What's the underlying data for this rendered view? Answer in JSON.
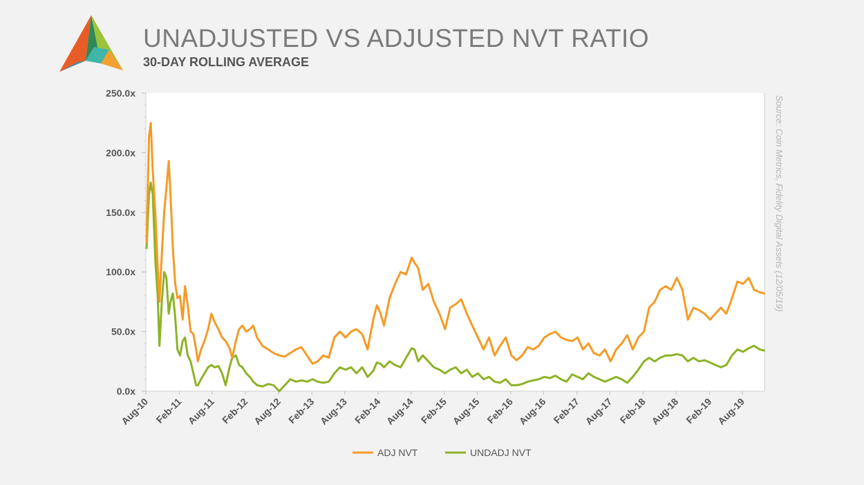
{
  "header": {
    "title": "UNADJUSTED VS ADJUSTED NVT RATIO",
    "subtitle": "30-DAY ROLLING AVERAGE",
    "source": "Source: Coin Metrics, Fidelity Digital Assets (12/05/19)"
  },
  "colors": {
    "background": "#f2f2f2",
    "plot_background": "#ffffff",
    "adj": "#f59a25",
    "undadj": "#8cb225",
    "axis_text": "#555555"
  },
  "chart_data": {
    "type": "line",
    "title": "UNADJUSTED VS ADJUSTED NVT RATIO",
    "subtitle": "30-DAY ROLLING AVERAGE",
    "xlabel": "",
    "ylabel": "",
    "x_range": [
      "2010-08",
      "2019-12"
    ],
    "ylim": [
      0,
      250
    ],
    "y_ticks": [
      0,
      50,
      100,
      150,
      200,
      250
    ],
    "y_tick_labels": [
      "0.0x",
      "50.0x",
      "100.0x",
      "150.0x",
      "200.0x",
      "250.0x"
    ],
    "x_ticks": [
      "2010-08",
      "2011-02",
      "2011-08",
      "2012-02",
      "2012-08",
      "2013-02",
      "2013-08",
      "2014-02",
      "2014-08",
      "2015-02",
      "2015-08",
      "2016-02",
      "2016-08",
      "2017-02",
      "2017-08",
      "2018-02",
      "2018-08",
      "2019-02",
      "2019-08"
    ],
    "x_tick_labels": [
      "Aug-10",
      "Feb-11",
      "Aug-11",
      "Feb-12",
      "Aug-12",
      "Feb-13",
      "Aug-13",
      "Feb-14",
      "Aug-14",
      "Feb-15",
      "Aug-15",
      "Feb-16",
      "Aug-16",
      "Feb-17",
      "Aug-17",
      "Feb-18",
      "Aug-18",
      "Feb-19",
      "Aug-19"
    ],
    "grid": false,
    "legend_position": "bottom",
    "series": [
      {
        "name": "ADJ NVT",
        "color": "#f59a25",
        "points": [
          [
            "2010-08-05",
            125
          ],
          [
            "2010-08-18",
            213
          ],
          [
            "2010-08-28",
            225
          ],
          [
            "2010-09-08",
            185
          ],
          [
            "2010-09-22",
            150
          ],
          [
            "2010-10-05",
            105
          ],
          [
            "2010-10-15",
            75
          ],
          [
            "2010-10-28",
            115
          ],
          [
            "2010-11-10",
            150
          ],
          [
            "2010-11-22",
            170
          ],
          [
            "2010-12-05",
            193
          ],
          [
            "2010-12-15",
            165
          ],
          [
            "2010-12-28",
            120
          ],
          [
            "2011-01-10",
            90
          ],
          [
            "2011-01-22",
            78
          ],
          [
            "2011-02-05",
            80
          ],
          [
            "2011-02-20",
            60
          ],
          [
            "2011-03-05",
            88
          ],
          [
            "2011-03-20",
            72
          ],
          [
            "2011-04-05",
            50
          ],
          [
            "2011-04-20",
            48
          ],
          [
            "2011-05-05",
            35
          ],
          [
            "2011-05-15",
            25
          ],
          [
            "2011-06-01",
            35
          ],
          [
            "2011-06-20",
            42
          ],
          [
            "2011-07-10",
            52
          ],
          [
            "2011-07-28",
            65
          ],
          [
            "2011-08-15",
            58
          ],
          [
            "2011-09-05",
            52
          ],
          [
            "2011-09-25",
            45
          ],
          [
            "2011-10-15",
            42
          ],
          [
            "2011-11-05",
            36
          ],
          [
            "2011-11-20",
            28
          ],
          [
            "2011-12-10",
            42
          ],
          [
            "2011-12-28",
            52
          ],
          [
            "2012-01-15",
            55
          ],
          [
            "2012-02-05",
            50
          ],
          [
            "2012-02-25",
            52
          ],
          [
            "2012-03-15",
            55
          ],
          [
            "2012-04-05",
            45
          ],
          [
            "2012-05-05",
            38
          ],
          [
            "2012-06-05",
            35
          ],
          [
            "2012-07-05",
            32
          ],
          [
            "2012-08-05",
            30
          ],
          [
            "2012-09-05",
            29
          ],
          [
            "2012-10-05",
            32
          ],
          [
            "2012-11-05",
            35
          ],
          [
            "2012-12-05",
            37
          ],
          [
            "2013-01-05",
            30
          ],
          [
            "2013-02-05",
            23
          ],
          [
            "2013-03-05",
            25
          ],
          [
            "2013-04-05",
            30
          ],
          [
            "2013-05-05",
            28
          ],
          [
            "2013-06-05",
            45
          ],
          [
            "2013-07-05",
            50
          ],
          [
            "2013-08-05",
            45
          ],
          [
            "2013-09-05",
            50
          ],
          [
            "2013-10-05",
            52
          ],
          [
            "2013-11-05",
            48
          ],
          [
            "2013-12-05",
            35
          ],
          [
            "2014-01-05",
            60
          ],
          [
            "2014-01-25",
            72
          ],
          [
            "2014-02-15",
            65
          ],
          [
            "2014-03-05",
            55
          ],
          [
            "2014-04-05",
            78
          ],
          [
            "2014-05-05",
            90
          ],
          [
            "2014-06-05",
            100
          ],
          [
            "2014-07-05",
            98
          ],
          [
            "2014-08-05",
            112
          ],
          [
            "2014-08-20",
            108
          ],
          [
            "2014-09-10",
            103
          ],
          [
            "2014-10-05",
            85
          ],
          [
            "2014-11-05",
            90
          ],
          [
            "2014-12-05",
            75
          ],
          [
            "2015-01-05",
            65
          ],
          [
            "2015-02-05",
            52
          ],
          [
            "2015-03-05",
            70
          ],
          [
            "2015-04-05",
            73
          ],
          [
            "2015-05-05",
            77
          ],
          [
            "2015-06-05",
            65
          ],
          [
            "2015-07-05",
            55
          ],
          [
            "2015-08-05",
            45
          ],
          [
            "2015-09-05",
            35
          ],
          [
            "2015-10-05",
            45
          ],
          [
            "2015-11-05",
            30
          ],
          [
            "2015-12-05",
            38
          ],
          [
            "2016-01-05",
            45
          ],
          [
            "2016-02-05",
            30
          ],
          [
            "2016-03-05",
            26
          ],
          [
            "2016-04-05",
            30
          ],
          [
            "2016-05-05",
            37
          ],
          [
            "2016-06-05",
            35
          ],
          [
            "2016-07-05",
            38
          ],
          [
            "2016-08-05",
            45
          ],
          [
            "2016-09-05",
            48
          ],
          [
            "2016-10-05",
            50
          ],
          [
            "2016-11-05",
            45
          ],
          [
            "2016-12-05",
            43
          ],
          [
            "2017-01-05",
            42
          ],
          [
            "2017-02-05",
            45
          ],
          [
            "2017-03-05",
            35
          ],
          [
            "2017-04-05",
            40
          ],
          [
            "2017-05-05",
            32
          ],
          [
            "2017-06-05",
            30
          ],
          [
            "2017-07-05",
            35
          ],
          [
            "2017-08-05",
            25
          ],
          [
            "2017-09-05",
            35
          ],
          [
            "2017-10-05",
            40
          ],
          [
            "2017-11-05",
            47
          ],
          [
            "2017-12-05",
            35
          ],
          [
            "2018-01-05",
            45
          ],
          [
            "2018-02-05",
            50
          ],
          [
            "2018-03-05",
            70
          ],
          [
            "2018-04-05",
            75
          ],
          [
            "2018-05-05",
            85
          ],
          [
            "2018-06-05",
            88
          ],
          [
            "2018-07-05",
            85
          ],
          [
            "2018-08-05",
            95
          ],
          [
            "2018-09-05",
            85
          ],
          [
            "2018-10-05",
            60
          ],
          [
            "2018-11-05",
            70
          ],
          [
            "2018-12-05",
            68
          ],
          [
            "2019-01-05",
            65
          ],
          [
            "2019-02-05",
            60
          ],
          [
            "2019-03-05",
            65
          ],
          [
            "2019-04-05",
            70
          ],
          [
            "2019-05-05",
            65
          ],
          [
            "2019-06-05",
            78
          ],
          [
            "2019-07-05",
            92
          ],
          [
            "2019-08-05",
            90
          ],
          [
            "2019-09-05",
            95
          ],
          [
            "2019-10-05",
            85
          ],
          [
            "2019-11-05",
            83
          ],
          [
            "2019-11-30",
            82
          ]
        ]
      },
      {
        "name": "UNDADJ NVT",
        "color": "#8cb225",
        "points": [
          [
            "2010-08-05",
            120
          ],
          [
            "2010-08-18",
            165
          ],
          [
            "2010-08-28",
            175
          ],
          [
            "2010-09-08",
            165
          ],
          [
            "2010-09-22",
            110
          ],
          [
            "2010-10-05",
            80
          ],
          [
            "2010-10-15",
            38
          ],
          [
            "2010-10-28",
            75
          ],
          [
            "2010-11-10",
            100
          ],
          [
            "2010-11-22",
            95
          ],
          [
            "2010-12-05",
            65
          ],
          [
            "2010-12-15",
            75
          ],
          [
            "2010-12-28",
            82
          ],
          [
            "2011-01-10",
            62
          ],
          [
            "2011-01-22",
            35
          ],
          [
            "2011-02-05",
            30
          ],
          [
            "2011-02-20",
            42
          ],
          [
            "2011-03-05",
            45
          ],
          [
            "2011-03-20",
            30
          ],
          [
            "2011-04-05",
            25
          ],
          [
            "2011-04-20",
            15
          ],
          [
            "2011-05-05",
            5
          ],
          [
            "2011-05-15",
            5
          ],
          [
            "2011-06-01",
            10
          ],
          [
            "2011-06-20",
            15
          ],
          [
            "2011-07-10",
            20
          ],
          [
            "2011-07-28",
            22
          ],
          [
            "2011-08-15",
            20
          ],
          [
            "2011-09-05",
            21
          ],
          [
            "2011-09-25",
            15
          ],
          [
            "2011-10-15",
            5
          ],
          [
            "2011-11-05",
            20
          ],
          [
            "2011-11-20",
            28
          ],
          [
            "2011-12-10",
            30
          ],
          [
            "2011-12-28",
            22
          ],
          [
            "2012-01-15",
            20
          ],
          [
            "2012-02-05",
            15
          ],
          [
            "2012-02-25",
            12
          ],
          [
            "2012-03-15",
            8
          ],
          [
            "2012-04-05",
            5
          ],
          [
            "2012-05-05",
            4
          ],
          [
            "2012-06-05",
            6
          ],
          [
            "2012-07-05",
            5
          ],
          [
            "2012-08-05",
            0
          ],
          [
            "2012-09-05",
            5
          ],
          [
            "2012-10-05",
            10
          ],
          [
            "2012-11-05",
            8
          ],
          [
            "2012-12-05",
            9
          ],
          [
            "2013-01-05",
            8
          ],
          [
            "2013-02-05",
            10
          ],
          [
            "2013-03-05",
            8
          ],
          [
            "2013-04-05",
            7
          ],
          [
            "2013-05-05",
            8
          ],
          [
            "2013-06-05",
            15
          ],
          [
            "2013-07-05",
            20
          ],
          [
            "2013-08-05",
            18
          ],
          [
            "2013-09-05",
            20
          ],
          [
            "2013-10-05",
            15
          ],
          [
            "2013-11-05",
            20
          ],
          [
            "2013-12-05",
            12
          ],
          [
            "2014-01-05",
            17
          ],
          [
            "2014-01-25",
            24
          ],
          [
            "2014-02-15",
            23
          ],
          [
            "2014-03-05",
            20
          ],
          [
            "2014-04-05",
            25
          ],
          [
            "2014-05-05",
            22
          ],
          [
            "2014-06-05",
            20
          ],
          [
            "2014-07-05",
            28
          ],
          [
            "2014-08-05",
            36
          ],
          [
            "2014-08-20",
            35
          ],
          [
            "2014-09-10",
            25
          ],
          [
            "2014-10-05",
            30
          ],
          [
            "2014-11-05",
            25
          ],
          [
            "2014-12-05",
            20
          ],
          [
            "2015-01-05",
            18
          ],
          [
            "2015-02-05",
            15
          ],
          [
            "2015-03-05",
            18
          ],
          [
            "2015-04-05",
            20
          ],
          [
            "2015-05-05",
            15
          ],
          [
            "2015-06-05",
            18
          ],
          [
            "2015-07-05",
            12
          ],
          [
            "2015-08-05",
            15
          ],
          [
            "2015-09-05",
            10
          ],
          [
            "2015-10-05",
            12
          ],
          [
            "2015-11-05",
            8
          ],
          [
            "2015-12-05",
            7
          ],
          [
            "2016-01-05",
            10
          ],
          [
            "2016-02-05",
            5
          ],
          [
            "2016-03-05",
            5
          ],
          [
            "2016-04-05",
            6
          ],
          [
            "2016-05-05",
            8
          ],
          [
            "2016-06-05",
            9
          ],
          [
            "2016-07-05",
            10
          ],
          [
            "2016-08-05",
            12
          ],
          [
            "2016-09-05",
            11
          ],
          [
            "2016-10-05",
            13
          ],
          [
            "2016-11-05",
            10
          ],
          [
            "2016-12-05",
            8
          ],
          [
            "2017-01-05",
            14
          ],
          [
            "2017-02-05",
            12
          ],
          [
            "2017-03-05",
            10
          ],
          [
            "2017-04-05",
            15
          ],
          [
            "2017-05-05",
            12
          ],
          [
            "2017-06-05",
            10
          ],
          [
            "2017-07-05",
            8
          ],
          [
            "2017-08-05",
            10
          ],
          [
            "2017-09-05",
            12
          ],
          [
            "2017-10-05",
            10
          ],
          [
            "2017-11-05",
            7
          ],
          [
            "2017-12-05",
            12
          ],
          [
            "2018-01-05",
            18
          ],
          [
            "2018-02-05",
            25
          ],
          [
            "2018-03-05",
            28
          ],
          [
            "2018-04-05",
            25
          ],
          [
            "2018-05-05",
            28
          ],
          [
            "2018-06-05",
            30
          ],
          [
            "2018-07-05",
            30
          ],
          [
            "2018-08-05",
            31
          ],
          [
            "2018-09-05",
            30
          ],
          [
            "2018-10-05",
            25
          ],
          [
            "2018-11-05",
            28
          ],
          [
            "2018-12-05",
            25
          ],
          [
            "2019-01-05",
            26
          ],
          [
            "2019-02-05",
            24
          ],
          [
            "2019-03-05",
            22
          ],
          [
            "2019-04-05",
            20
          ],
          [
            "2019-05-05",
            22
          ],
          [
            "2019-06-05",
            30
          ],
          [
            "2019-07-05",
            35
          ],
          [
            "2019-08-05",
            33
          ],
          [
            "2019-09-05",
            36
          ],
          [
            "2019-10-05",
            38
          ],
          [
            "2019-11-05",
            35
          ],
          [
            "2019-11-30",
            34
          ]
        ]
      }
    ]
  }
}
